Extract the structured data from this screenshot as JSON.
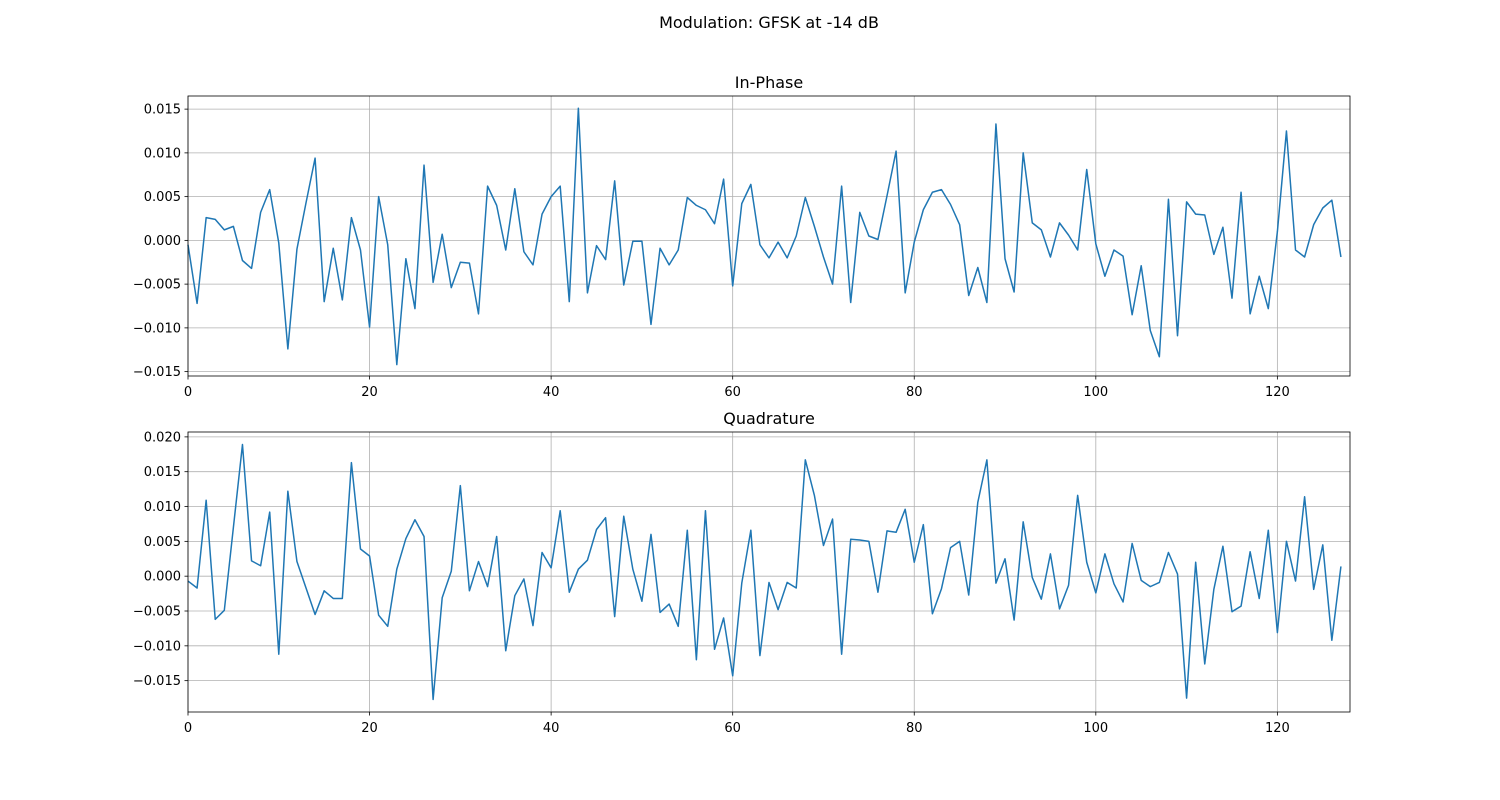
{
  "suptitle": "Modulation: GFSK at -14 dB",
  "colors": {
    "line": "#1f77b4",
    "grid": "#b0b0b0",
    "axis": "#000000"
  },
  "chart_data": [
    {
      "type": "line",
      "title": "In-Phase",
      "xlabel": "",
      "ylabel": "",
      "grid": true,
      "xlim": [
        0,
        128
      ],
      "ylim": [
        -0.0155,
        0.0165
      ],
      "xticks": [
        0,
        20,
        40,
        60,
        80,
        100,
        120
      ],
      "yticks": [
        -0.015,
        -0.01,
        -0.005,
        0.0,
        0.005,
        0.01,
        0.015
      ],
      "ytick_labels": [
        "−0.015",
        "−0.010",
        "−0.005",
        "0.000",
        "0.005",
        "0.010",
        "0.015"
      ],
      "series": [
        {
          "values": [
            -0.0005,
            -0.0072,
            0.0026,
            0.0024,
            0.0012,
            0.0016,
            -0.0023,
            -0.0032,
            0.0032,
            0.0058,
            -0.0003,
            -0.0124,
            -0.001,
            0.0043,
            0.0094,
            -0.007,
            -0.0009,
            -0.0068,
            0.0026,
            -0.0011,
            -0.0099,
            0.005,
            -0.0005,
            -0.0142,
            -0.0021,
            -0.0078,
            0.0086,
            -0.0048,
            0.0007,
            -0.0054,
            -0.0025,
            -0.0026,
            -0.0084,
            0.0062,
            0.004,
            -0.0011,
            0.0059,
            -0.0013,
            -0.0028,
            0.003,
            0.005,
            0.0062,
            -0.007,
            0.0151,
            -0.006,
            -0.0006,
            -0.0022,
            0.0068,
            -0.0051,
            -0.0001,
            -0.0001,
            -0.0096,
            -0.0009,
            -0.0028,
            -0.0011,
            0.0049,
            0.004,
            0.0035,
            0.0019,
            0.007,
            -0.0052,
            0.0042,
            0.0064,
            -0.0005,
            -0.002,
            -0.0002,
            -0.002,
            0.0005,
            0.0049,
            0.0016,
            -0.0019,
            -0.005,
            0.0062,
            -0.0071,
            0.0032,
            0.0005,
            0.0001,
            0.0051,
            0.0102,
            -0.006,
            -0.0002,
            0.0035,
            0.0055,
            0.0058,
            0.0041,
            0.0018,
            -0.0063,
            -0.0031,
            -0.0071,
            0.0133,
            -0.0021,
            -0.0059,
            0.01,
            0.002,
            0.0012,
            -0.0019,
            0.002,
            0.0006,
            -0.0011,
            0.0081,
            -0.0004,
            -0.0041,
            -0.0011,
            -0.0018,
            -0.0085,
            -0.0029,
            -0.0103,
            -0.0133,
            0.0047,
            -0.0109,
            0.0044,
            0.003,
            0.0029,
            -0.0016,
            0.0015,
            -0.0066,
            0.0055,
            -0.0084,
            -0.0041,
            -0.0078,
            0.001,
            0.0125,
            -0.0011,
            -0.0019,
            0.0018,
            0.0037,
            0.0046,
            -0.0019
          ]
        }
      ]
    },
    {
      "type": "line",
      "title": "Quadrature",
      "xlabel": "",
      "ylabel": "",
      "grid": true,
      "xlim": [
        0,
        128
      ],
      "ylim": [
        -0.0195,
        0.0207
      ],
      "xticks": [
        0,
        20,
        40,
        60,
        80,
        100,
        120
      ],
      "yticks": [
        -0.015,
        -0.01,
        -0.005,
        0.0,
        0.005,
        0.01,
        0.015,
        0.02
      ],
      "ytick_labels": [
        "−0.015",
        "−0.010",
        "−0.005",
        "0.000",
        "0.005",
        "0.010",
        "0.015",
        "0.020"
      ],
      "series": [
        {
          "values": [
            -0.0007,
            -0.0017,
            0.0109,
            -0.0062,
            -0.0049,
            0.007,
            0.0189,
            0.0022,
            0.0015,
            0.0092,
            -0.0112,
            0.0122,
            0.0021,
            -0.0017,
            -0.0055,
            -0.0021,
            -0.0032,
            -0.0032,
            0.0163,
            0.0039,
            0.0029,
            -0.0056,
            -0.0072,
            0.001,
            0.0054,
            0.0081,
            0.0057,
            -0.0177,
            -0.0031,
            0.0007,
            0.013,
            -0.0021,
            0.0021,
            -0.0015,
            0.0057,
            -0.0107,
            -0.0028,
            -0.0004,
            -0.0071,
            0.0034,
            0.0012,
            0.0094,
            -0.0023,
            0.001,
            0.0023,
            0.0067,
            0.0084,
            -0.0058,
            0.0086,
            0.001,
            -0.0036,
            0.006,
            -0.0052,
            -0.004,
            -0.0072,
            0.0066,
            -0.012,
            0.0094,
            -0.0105,
            -0.006,
            -0.0143,
            -0.001,
            0.0066,
            -0.0114,
            -0.0009,
            -0.0048,
            -0.0009,
            -0.0017,
            0.0167,
            0.0116,
            0.0044,
            0.0082,
            -0.0112,
            0.0053,
            0.0052,
            0.005,
            -0.0023,
            0.0065,
            0.0063,
            0.0096,
            0.002,
            0.0074,
            -0.0054,
            -0.0018,
            0.0041,
            0.005,
            -0.0027,
            0.0106,
            0.0167,
            -0.001,
            0.0025,
            -0.0063,
            0.0078,
            -0.0002,
            -0.0033,
            0.0032,
            -0.0047,
            -0.0013,
            0.0116,
            0.002,
            -0.0024,
            0.0032,
            -0.0011,
            -0.0037,
            0.0047,
            -0.0006,
            -0.0015,
            -0.0009,
            0.0034,
            0.0003,
            -0.0175,
            0.002,
            -0.0126,
            -0.0019,
            0.0043,
            -0.0051,
            -0.0043,
            0.0035,
            -0.0032,
            0.0066,
            -0.0081,
            0.005,
            -0.0007,
            0.0114,
            -0.0019,
            0.0045,
            -0.0092,
            0.0014
          ]
        }
      ]
    }
  ]
}
